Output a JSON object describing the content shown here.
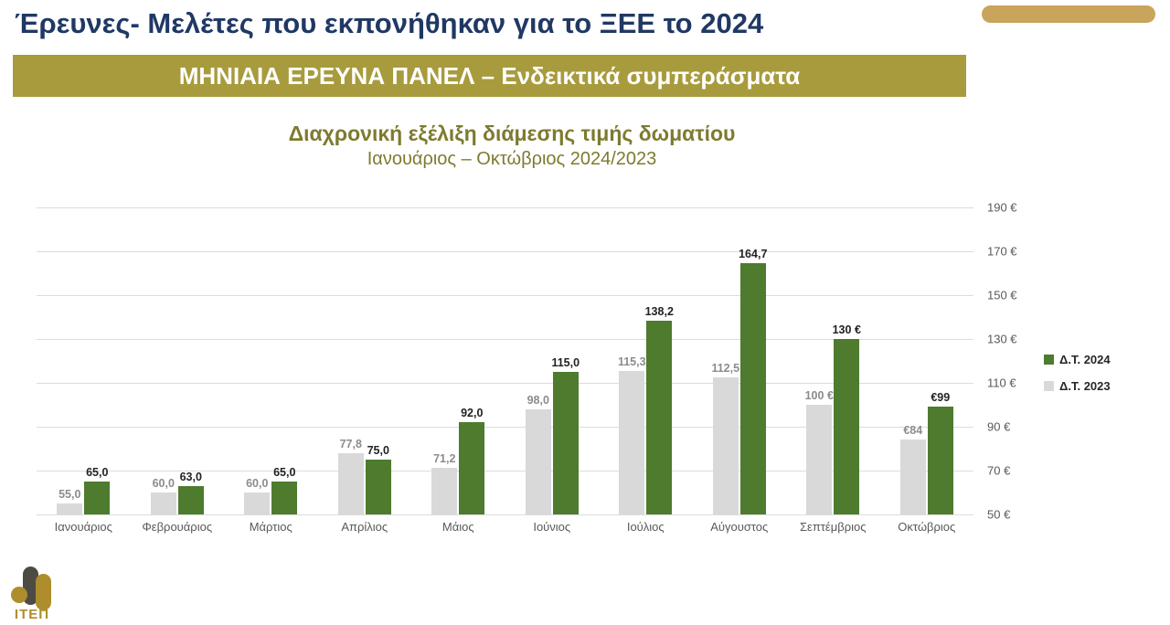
{
  "slide": {
    "title": "Έρευνες- Μελέτες που εκπονήθηκαν για το ΞΕΕ το 2024",
    "banner": "ΜΗΝΙΑΙΑ ΕΡΕΥΝΑ ΠΑΝΕΛ – Ενδεικτικά συμπεράσματα",
    "logo_text": "ΙΤΕΠ"
  },
  "colors": {
    "title_navy": "#203864",
    "banner_gold": "#A89B3D",
    "chart_title_olive": "#7E7A2F",
    "bar_green_2024": "#4E7B2E",
    "bar_gray_2023": "#D9D9D9",
    "deco_gold": "#C9A45C"
  },
  "chart_data": {
    "type": "bar",
    "title": "Διαχρονική εξέλιξη διάμεσης τιμής δωματίου",
    "subtitle": "Ιανουάριος – Οκτώβριος 2024/2023",
    "categories": [
      "Ιανουάριος",
      "Φεβρουάριος",
      "Μάρτιος",
      "Απρίλιος",
      "Μάιος",
      "Ιούνιος",
      "Ιούλιος",
      "Αύγουστος",
      "Σεπτέμβριος",
      "Οκτώβριος"
    ],
    "series": [
      {
        "name": "Δ.Τ. 2024",
        "color": "#4E7B2E",
        "values": [
          65.0,
          63.0,
          65.0,
          75.0,
          92.0,
          115.0,
          138.2,
          164.7,
          130,
          99
        ],
        "labels": [
          "65,0",
          "63,0",
          "65,0",
          "75,0",
          "92,0",
          "115,0",
          "138,2",
          "164,7",
          "130 €",
          "€99"
        ]
      },
      {
        "name": "Δ.Τ. 2023",
        "color": "#D9D9D9",
        "values": [
          55.0,
          60.0,
          60.0,
          77.8,
          71.2,
          98.0,
          115.3,
          112.5,
          100,
          84
        ],
        "labels": [
          "55,0",
          "60,0",
          "60,0",
          "77,8",
          "71,2",
          "98,0",
          "115,3",
          "112,5",
          "100 €",
          "€84"
        ]
      }
    ],
    "y_axis": {
      "min": 50,
      "max": 190,
      "step": 20,
      "side": "right",
      "tick_labels": [
        "50 €",
        "70 €",
        "90 €",
        "110 €",
        "130 €",
        "150 €",
        "170 €",
        "190 €"
      ]
    },
    "grid": true,
    "legend_position": "right",
    "legend": [
      "Δ.Τ. 2024",
      "Δ.Τ. 2023"
    ]
  }
}
